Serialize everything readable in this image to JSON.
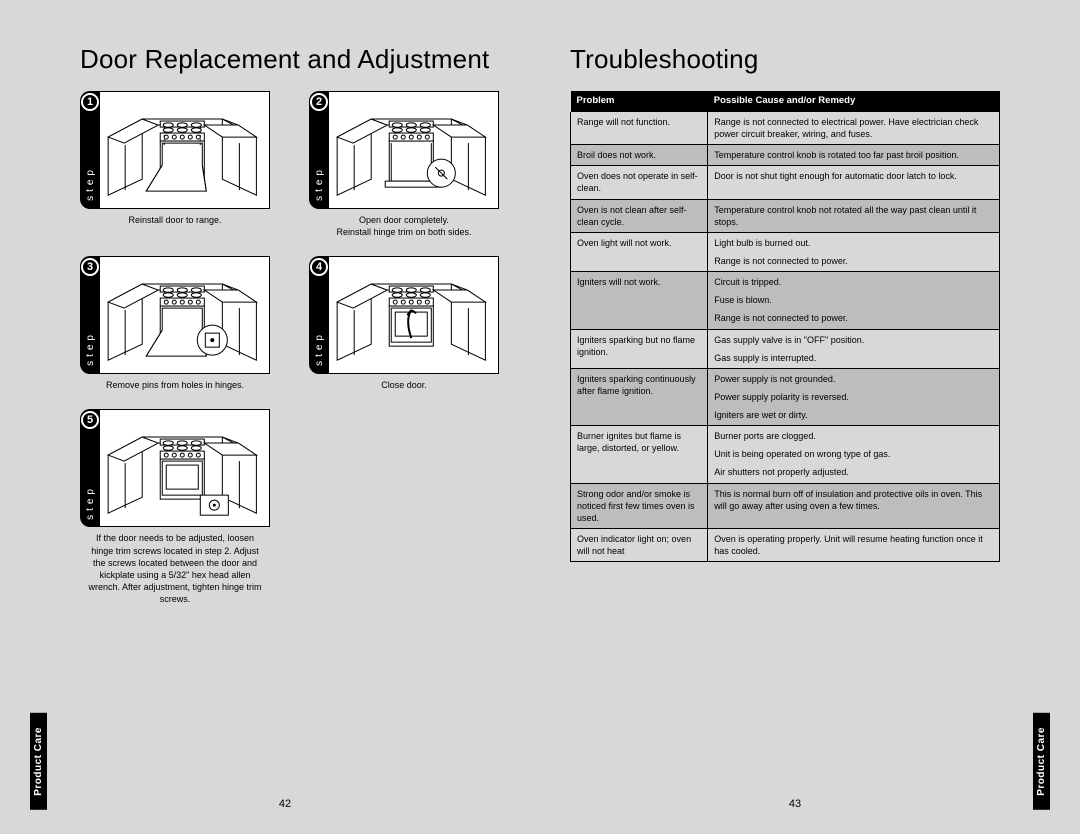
{
  "left": {
    "title": "Door Replacement and Adjustment",
    "sideTab": "Product Care",
    "pageNum": "42",
    "stepWord": "step",
    "steps": [
      {
        "num": "1",
        "caption": "Reinstall door to range."
      },
      {
        "num": "2",
        "caption": "Open door completely.\nReinstall hinge trim on both sides."
      },
      {
        "num": "3",
        "caption": "Remove pins from holes in hinges."
      },
      {
        "num": "4",
        "caption": "Close door."
      },
      {
        "num": "5",
        "caption": "If the door needs to be adjusted, loosen hinge trim screws located in step 2. Adjust the screws located between the door and kickplate using a 5/32\" hex head allen wrench. After adjustment, tighten hinge trim screws."
      }
    ]
  },
  "right": {
    "title": "Troubleshooting",
    "sideTab": "Product Care",
    "pageNum": "43",
    "columns": [
      "Problem",
      "Possible Cause and/or Remedy"
    ],
    "rows": [
      {
        "band": false,
        "problem": "Range will not function.",
        "remedy": [
          "Range is not connected to electrical power. Have electrician check power circuit breaker, wiring, and fuses."
        ]
      },
      {
        "band": true,
        "problem": "Broil does not work.",
        "remedy": [
          "Temperature control knob is rotated too far past broil position."
        ]
      },
      {
        "band": false,
        "problem": "Oven does not operate in self-clean.",
        "remedy": [
          "Door is not shut tight enough for automatic door latch to lock."
        ]
      },
      {
        "band": true,
        "problem": "Oven is not clean after self-clean cycle.",
        "remedy": [
          "Temperature control knob not rotated all the way past clean until it stops."
        ]
      },
      {
        "band": false,
        "problem": "Oven light will not work.",
        "remedy": [
          "Light bulb is burned out.",
          "Range is not connected to power."
        ]
      },
      {
        "band": true,
        "problem": "Igniters will not work.",
        "remedy": [
          "Circuit is tripped.",
          "Fuse is blown.",
          "Range is not connected to power."
        ]
      },
      {
        "band": false,
        "problem": "Igniters sparking but no flame ignition.",
        "remedy": [
          "Gas supply valve is in \"OFF\" position.",
          "Gas supply is interrupted."
        ]
      },
      {
        "band": true,
        "problem": "Igniters sparking continuously after flame ignition.",
        "remedy": [
          "Power supply is not grounded.",
          "Power supply polarity is reversed.",
          "Igniters are wet or dirty."
        ]
      },
      {
        "band": false,
        "problem": "Burner ignites but flame is large, distorted, or yellow.",
        "remedy": [
          "Burner ports are clogged.",
          "Unit is being operated on wrong type of gas.",
          "Air shutters not properly adjusted."
        ]
      },
      {
        "band": true,
        "problem": "Strong odor and/or smoke is noticed first few times oven is used.",
        "remedy": [
          "This is normal burn off of insulation and protective oils in oven. This will go away after using oven a few times."
        ]
      },
      {
        "band": false,
        "problem": "Oven indicator light on; oven will not heat",
        "remedy": [
          "Oven is operating properly. Unit will resume heating function once it has cooled."
        ]
      }
    ]
  },
  "style": {
    "bg": "#d8d8d8",
    "bandBg": "#bdbdbd",
    "headerBg": "#000000",
    "headerFg": "#ffffff",
    "baseFont": 9,
    "titleFont": 26
  }
}
